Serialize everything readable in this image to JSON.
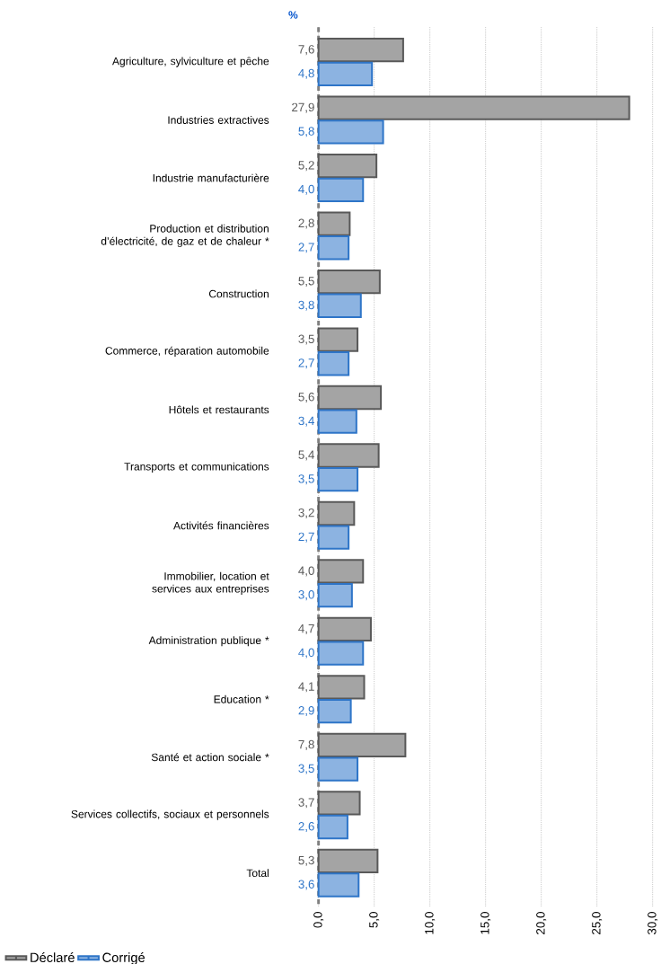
{
  "chart_data": {
    "type": "bar",
    "orientation": "horizontal",
    "xlabel": "%",
    "categories": [
      "Agriculture, sylviculture et pêche",
      "Industries extractives",
      "Industrie manufacturière",
      "Production et distribution d’électricité, de gaz et de chaleur *",
      "Construction",
      "Commerce, réparation automobile",
      "Hôtels et restaurants",
      "Transports et communications",
      "Activités financières",
      "Immobilier, location et services aux entreprises",
      "Administration publique *",
      "Education *",
      "Santé et action sociale *",
      "Services collectifs, sociaux et personnels",
      "Total"
    ],
    "series": [
      {
        "name": "Déclaré",
        "color": "#595959",
        "values": [
          7.6,
          27.9,
          5.2,
          2.8,
          5.5,
          3.5,
          5.6,
          5.4,
          3.2,
          4.0,
          4.7,
          4.1,
          7.8,
          3.7,
          5.3
        ],
        "value_labels": [
          "7,6",
          "27,9",
          "5,2",
          "2,8",
          "5,5",
          "3,5",
          "5,6",
          "5,4",
          "3,2",
          "4,0",
          "4,7",
          "4,1",
          "7,8",
          "3,7",
          "5,3"
        ]
      },
      {
        "name": "Corrigé",
        "color": "#2e75c8",
        "values": [
          4.8,
          5.8,
          4.0,
          2.7,
          3.8,
          2.7,
          3.4,
          3.5,
          2.7,
          3.0,
          4.0,
          2.9,
          3.5,
          2.6,
          3.6
        ],
        "value_labels": [
          "4,8",
          "5,8",
          "4,0",
          "2,7",
          "3,8",
          "2,7",
          "3,4",
          "3,5",
          "2,7",
          "3,0",
          "4,0",
          "2,9",
          "3,5",
          "2,6",
          "3,6"
        ]
      }
    ],
    "xlim": [
      0,
      30
    ],
    "xticks": [
      {
        "value": 0,
        "label": "0,0"
      },
      {
        "value": 5,
        "label": "5,0"
      },
      {
        "value": 10,
        "label": "10,0"
      },
      {
        "value": 15,
        "label": "15,0"
      },
      {
        "value": 20,
        "label": "20,0"
      },
      {
        "value": 25,
        "label": "25,0"
      },
      {
        "value": 30,
        "label": "30,0"
      }
    ],
    "grid": "x",
    "legend": "bottom left"
  }
}
